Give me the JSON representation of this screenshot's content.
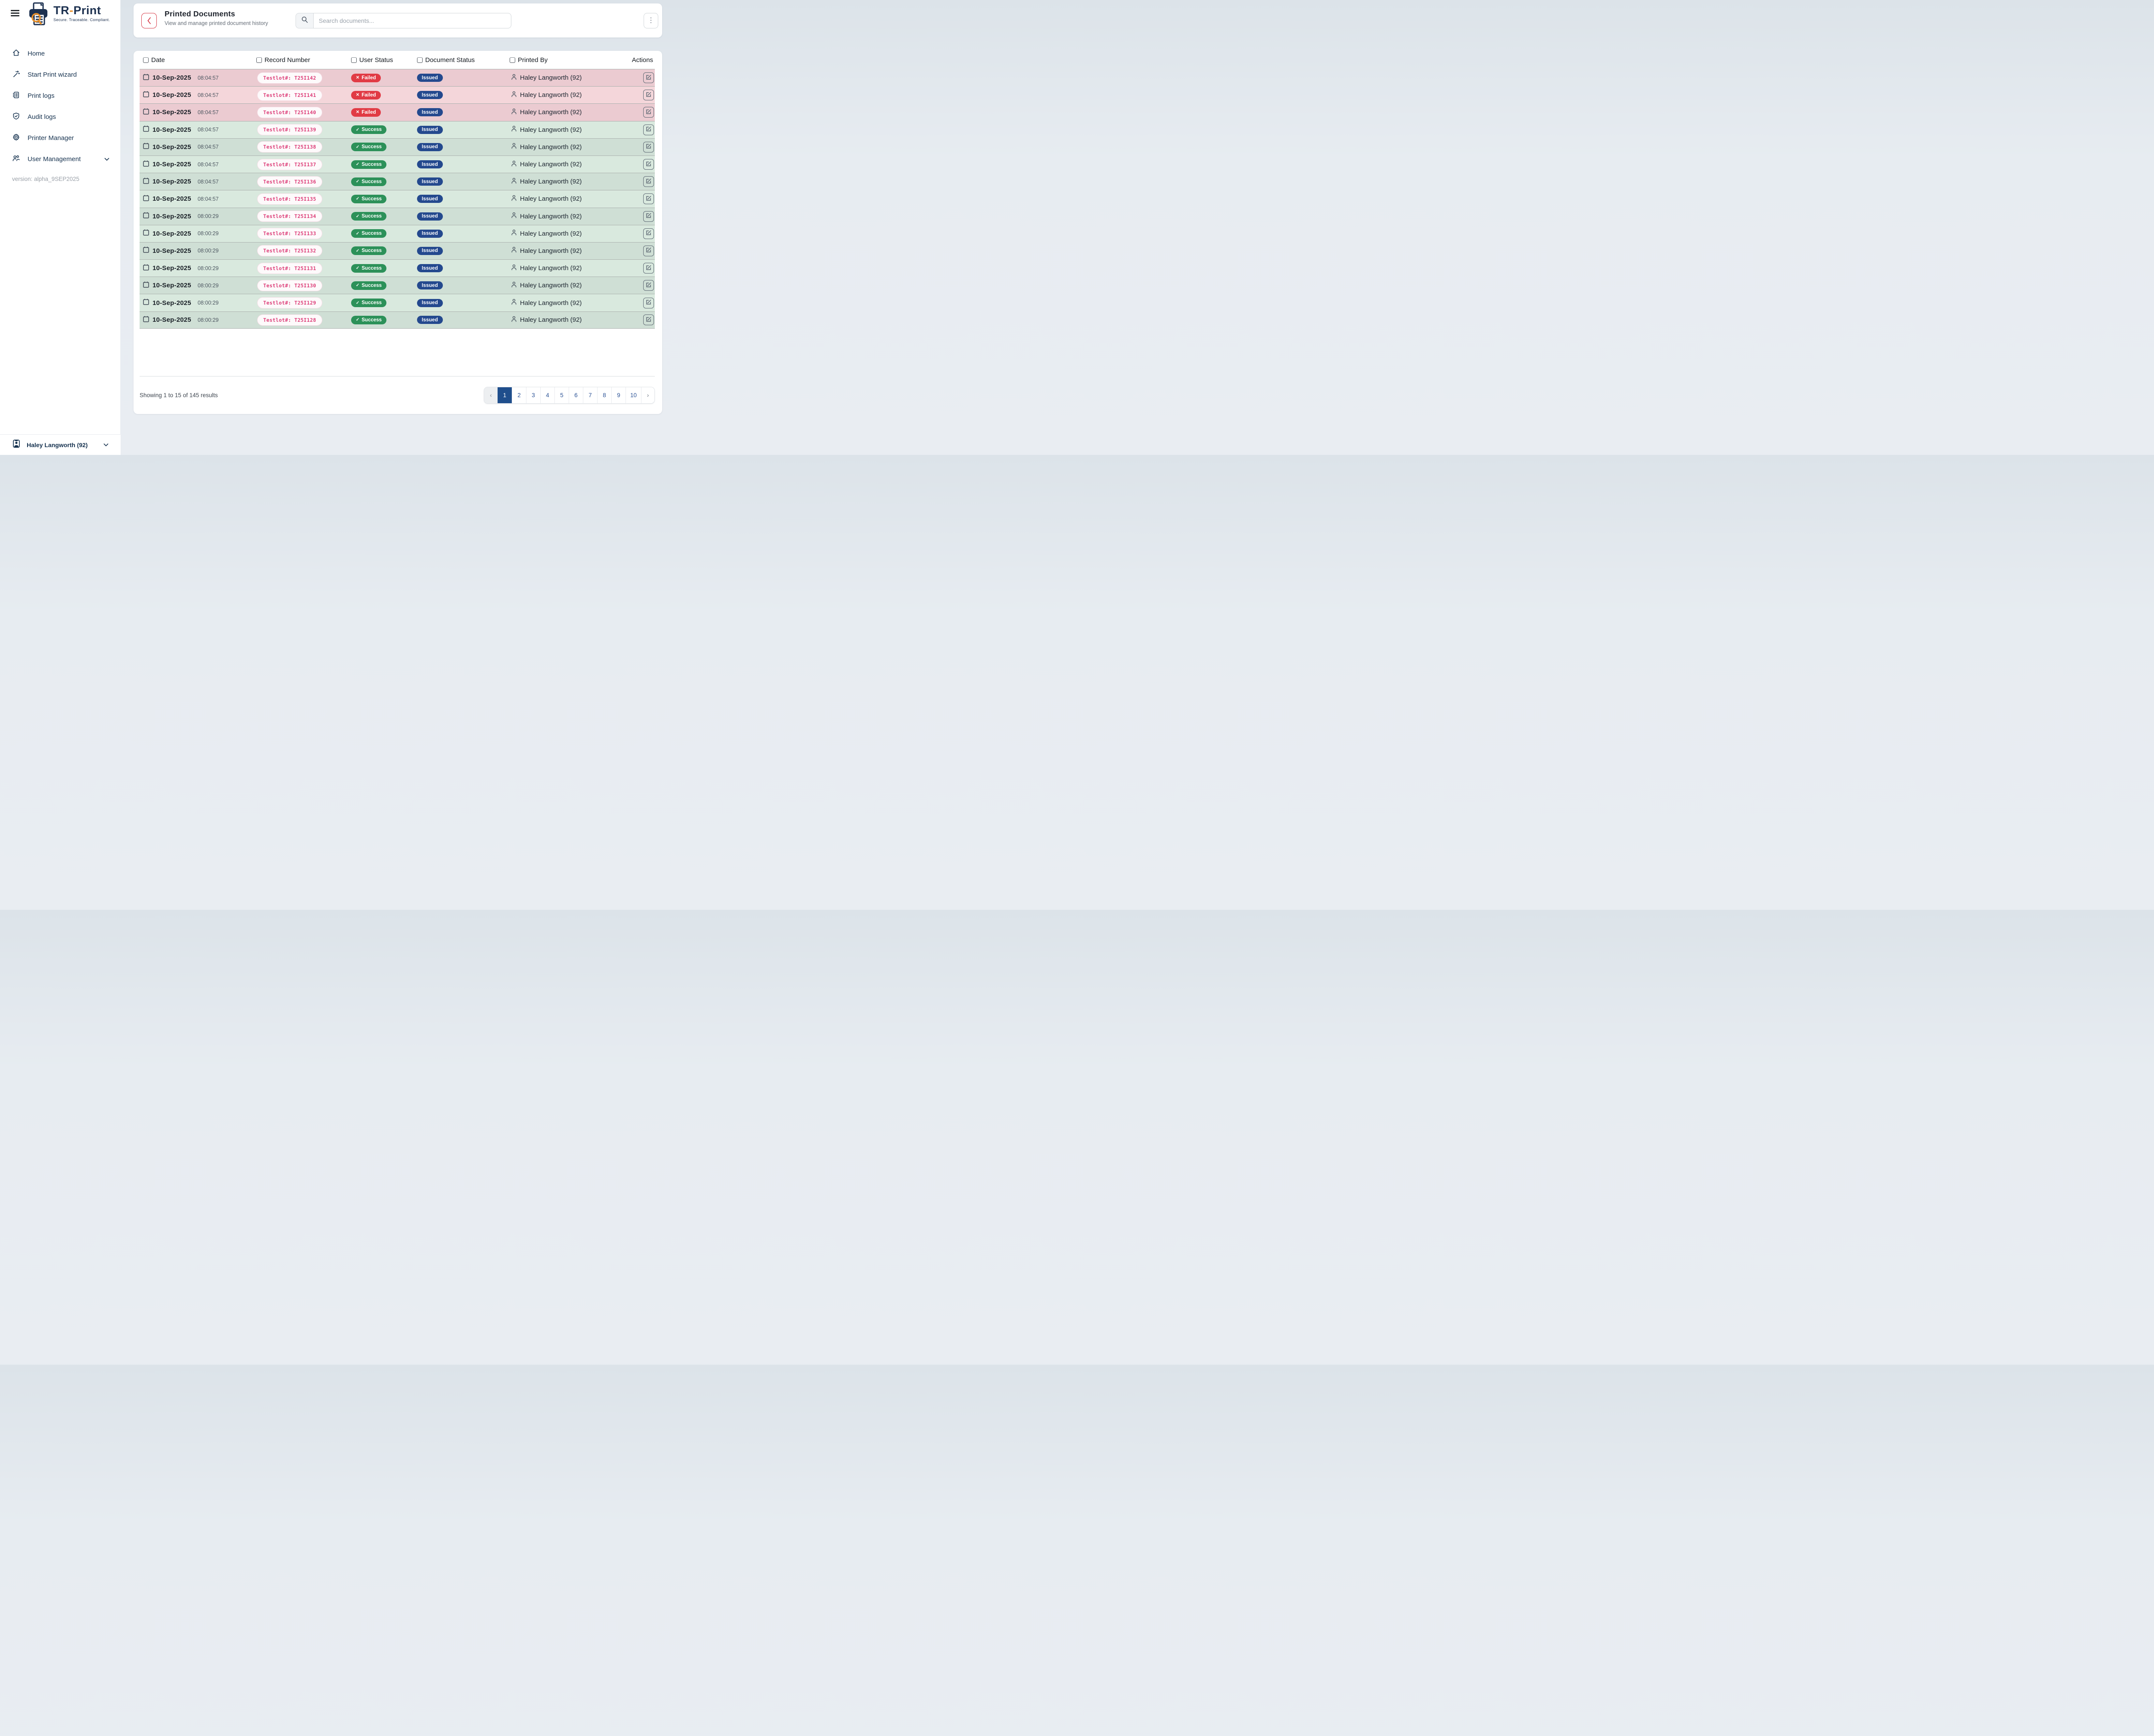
{
  "app": {
    "name_left": "TR",
    "name_dash": "-",
    "name_right": "Print",
    "tagline": "Secure. Traceable. Compliant.",
    "version": "version: alpha_9SEP2025"
  },
  "sidebar": {
    "items": [
      {
        "icon": "home-icon",
        "label": "Home"
      },
      {
        "icon": "wand-icon",
        "label": "Start Print wizard"
      },
      {
        "icon": "print-logs-icon",
        "label": "Print logs"
      },
      {
        "icon": "shield-check-icon",
        "label": "Audit logs"
      },
      {
        "icon": "gear-icon",
        "label": "Printer Manager"
      },
      {
        "icon": "users-icon",
        "label": "User Management"
      }
    ],
    "user": {
      "name": "Haley Langworth (92)"
    }
  },
  "header": {
    "back_label": "‹",
    "title": "Printed Documents",
    "subtitle": "View and manage printed document history",
    "search_placeholder": "Search documents...",
    "kebab": "⋮"
  },
  "table": {
    "columns": [
      "Date",
      "Record Number",
      "User Status",
      "Document Status",
      "Printed By",
      "Actions"
    ],
    "fail_icon": "✕",
    "success_icon": "✓",
    "rows": [
      {
        "date": "10-Sep-2025",
        "time": "08:04:57",
        "record": "Testlot#: T25I142",
        "user_status": "Failed",
        "document_status": "Issued",
        "printed_by": "Haley Langworth (92)"
      },
      {
        "date": "10-Sep-2025",
        "time": "08:04:57",
        "record": "Testlot#: T25I141",
        "user_status": "Failed",
        "document_status": "Issued",
        "printed_by": "Haley Langworth (92)"
      },
      {
        "date": "10-Sep-2025",
        "time": "08:04:57",
        "record": "Testlot#: T25I140",
        "user_status": "Failed",
        "document_status": "Issued",
        "printed_by": "Haley Langworth (92)"
      },
      {
        "date": "10-Sep-2025",
        "time": "08:04:57",
        "record": "Testlot#: T25I139",
        "user_status": "Success",
        "document_status": "Issued",
        "printed_by": "Haley Langworth (92)"
      },
      {
        "date": "10-Sep-2025",
        "time": "08:04:57",
        "record": "Testlot#: T25I138",
        "user_status": "Success",
        "document_status": "Issued",
        "printed_by": "Haley Langworth (92)"
      },
      {
        "date": "10-Sep-2025",
        "time": "08:04:57",
        "record": "Testlot#: T25I137",
        "user_status": "Success",
        "document_status": "Issued",
        "printed_by": "Haley Langworth (92)"
      },
      {
        "date": "10-Sep-2025",
        "time": "08:04:57",
        "record": "Testlot#: T25I136",
        "user_status": "Success",
        "document_status": "Issued",
        "printed_by": "Haley Langworth (92)"
      },
      {
        "date": "10-Sep-2025",
        "time": "08:04:57",
        "record": "Testlot#: T25I135",
        "user_status": "Success",
        "document_status": "Issued",
        "printed_by": "Haley Langworth (92)"
      },
      {
        "date": "10-Sep-2025",
        "time": "08:00:29",
        "record": "Testlot#: T25I134",
        "user_status": "Success",
        "document_status": "Issued",
        "printed_by": "Haley Langworth (92)"
      },
      {
        "date": "10-Sep-2025",
        "time": "08:00:29",
        "record": "Testlot#: T25I133",
        "user_status": "Success",
        "document_status": "Issued",
        "printed_by": "Haley Langworth (92)"
      },
      {
        "date": "10-Sep-2025",
        "time": "08:00:29",
        "record": "Testlot#: T25I132",
        "user_status": "Success",
        "document_status": "Issued",
        "printed_by": "Haley Langworth (92)"
      },
      {
        "date": "10-Sep-2025",
        "time": "08:00:29",
        "record": "Testlot#: T25I131",
        "user_status": "Success",
        "document_status": "Issued",
        "printed_by": "Haley Langworth (92)"
      },
      {
        "date": "10-Sep-2025",
        "time": "08:00:29",
        "record": "Testlot#: T25I130",
        "user_status": "Success",
        "document_status": "Issued",
        "printed_by": "Haley Langworth (92)"
      },
      {
        "date": "10-Sep-2025",
        "time": "08:00:29",
        "record": "Testlot#: T25I129",
        "user_status": "Success",
        "document_status": "Issued",
        "printed_by": "Haley Langworth (92)"
      },
      {
        "date": "10-Sep-2025",
        "time": "08:00:29",
        "record": "Testlot#: T25I128",
        "user_status": "Success",
        "document_status": "Issued",
        "printed_by": "Haley Langworth (92)"
      }
    ]
  },
  "footer": {
    "summary": "Showing 1 to 15 of 145 results",
    "prev": "‹",
    "next": "›",
    "pages": [
      "1",
      "2",
      "3",
      "4",
      "5",
      "6",
      "7",
      "8",
      "9",
      "10"
    ],
    "active_page": "1"
  },
  "colors": {
    "navy": "#1d3150",
    "orange": "#e88f28",
    "back_red": "#d63a47",
    "failed_red": "#e13b45",
    "success_green": "#2c9159",
    "issued_navy": "#24498e",
    "record_pink": "#dd3d78",
    "active_page_navy": "#1f4e8c",
    "row_fail_dark": "#ebcbd1",
    "row_fail_light": "#f4d6da",
    "row_ok_dark": "#cfdfd5",
    "row_ok_light": "#d9e9de"
  }
}
